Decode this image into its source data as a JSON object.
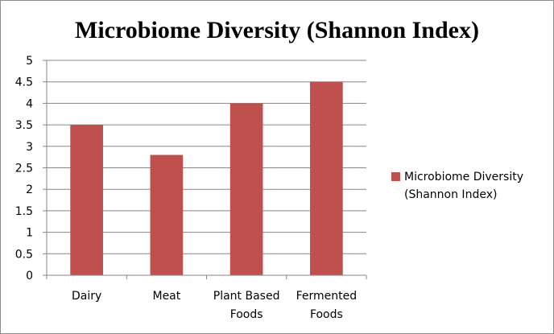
{
  "chart_data": {
    "type": "bar",
    "title": "Microbiome Diversity (Shannon Index)",
    "categories": [
      [
        "Dairy"
      ],
      [
        "Meat"
      ],
      [
        "Plant Based",
        "Foods"
      ],
      [
        "Fermented",
        "Foods"
      ]
    ],
    "series": [
      {
        "name": "Microbiome Diversity (Shannon Index)",
        "legend_lines": [
          "Microbiome Diversity",
          "(Shannon Index)"
        ],
        "values": [
          3.5,
          2.8,
          4.0,
          4.5
        ],
        "color": "#c0504d"
      }
    ],
    "ylim": [
      0,
      5
    ],
    "yticks": [
      "0",
      "0.5",
      "1",
      "1.5",
      "2",
      "2.5",
      "3",
      "3.5",
      "4",
      "4.5",
      "5"
    ],
    "grid": true,
    "legend_position": "right",
    "grid_color": "#868686"
  }
}
